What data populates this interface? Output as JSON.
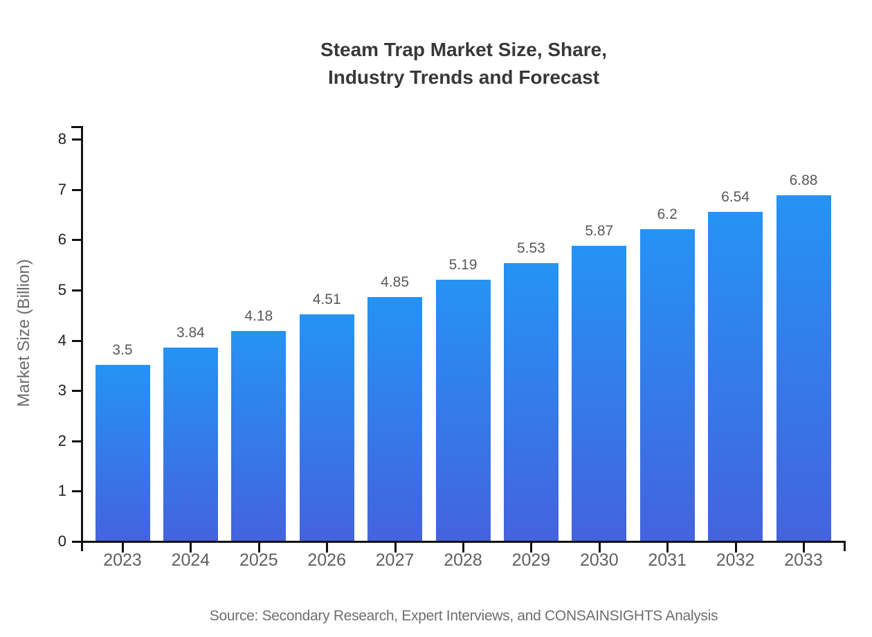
{
  "title": {
    "line1": "Steam Trap Market Size, Share,",
    "line2": "Industry Trends and Forecast"
  },
  "source_note": "Source: Secondary Research, Expert Interviews, and CONSAINSIGHTS Analysis",
  "chart_data": {
    "type": "bar",
    "title": "Steam Trap Market Size, Share, Industry Trends and Forecast",
    "categories": [
      "2023",
      "2024",
      "2025",
      "2026",
      "2027",
      "2028",
      "2029",
      "2030",
      "2031",
      "2032",
      "2033"
    ],
    "values": [
      3.5,
      3.84,
      4.18,
      4.51,
      4.85,
      5.19,
      5.53,
      5.87,
      6.2,
      6.54,
      6.88
    ],
    "value_labels": [
      "3.5",
      "3.84",
      "4.18",
      "4.51",
      "4.85",
      "5.19",
      "5.53",
      "5.87",
      "6.2",
      "6.54",
      "6.88"
    ],
    "xlabel": "",
    "ylabel": "Market Size (Billion)",
    "ylim": [
      0,
      8
    ],
    "yticks": [
      0,
      1,
      2,
      3,
      4,
      5,
      6,
      7,
      8
    ],
    "grid": false,
    "legend": "none",
    "colors": {
      "bar_gradient_top": "#2593f4",
      "bar_gradient_bottom": "#4463dc",
      "axis": "#111111",
      "title_text": "#383838",
      "tick_text": "#1f1f1f",
      "category_text": "#606060",
      "value_label_text": "#595959",
      "ylabel_text": "#6b6b6b",
      "source_text": "#6e6e6e"
    }
  }
}
